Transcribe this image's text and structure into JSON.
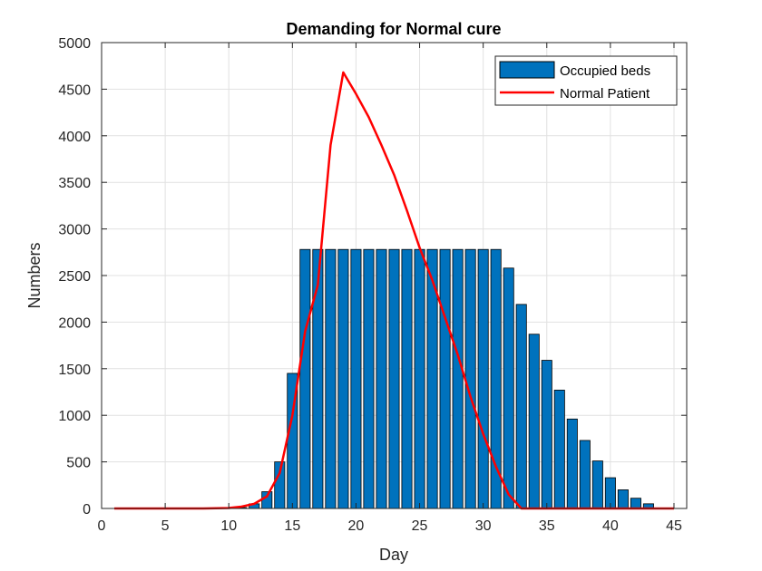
{
  "chart_data": {
    "type": "bar",
    "title": "Demanding for Normal cure",
    "xlabel": "Day",
    "ylabel": "Numbers",
    "xlim": [
      0,
      46
    ],
    "ylim": [
      0,
      5000
    ],
    "xticks": [
      0,
      5,
      10,
      15,
      20,
      25,
      30,
      35,
      40,
      45
    ],
    "yticks": [
      0,
      500,
      1000,
      1500,
      2000,
      2500,
      3000,
      3500,
      4000,
      4500,
      5000
    ],
    "grid": true,
    "legend_position": "top-right",
    "bar_color": "#0072BD",
    "line_color": "#FF0000",
    "series": [
      {
        "name": "Occupied beds",
        "kind": "bar",
        "x": [
          1,
          2,
          3,
          4,
          5,
          6,
          7,
          8,
          9,
          10,
          11,
          12,
          13,
          14,
          15,
          16,
          17,
          18,
          19,
          20,
          21,
          22,
          23,
          24,
          25,
          26,
          27,
          28,
          29,
          30,
          31,
          32,
          33,
          34,
          35,
          36,
          37,
          38,
          39,
          40,
          41,
          42,
          43,
          44,
          45
        ],
        "values": [
          0,
          0,
          0,
          0,
          0,
          0,
          0,
          0,
          0,
          0,
          10,
          50,
          180,
          500,
          1450,
          2780,
          2780,
          2780,
          2780,
          2780,
          2780,
          2780,
          2780,
          2780,
          2780,
          2780,
          2780,
          2780,
          2780,
          2780,
          2780,
          2580,
          2190,
          1870,
          1590,
          1270,
          960,
          730,
          510,
          330,
          200,
          110,
          50,
          0,
          0
        ]
      },
      {
        "name": "Normal Patient",
        "kind": "line",
        "x": [
          1,
          2,
          3,
          4,
          5,
          6,
          7,
          8,
          9,
          10,
          11,
          12,
          13,
          14,
          15,
          16,
          17,
          18,
          19,
          20,
          21,
          22,
          23,
          24,
          25,
          26,
          27,
          28,
          29,
          30,
          31,
          32,
          33,
          34,
          35,
          36,
          37,
          38,
          39,
          40,
          41,
          42,
          43,
          44,
          45
        ],
        "values": [
          0,
          0,
          0,
          0,
          0,
          0,
          0,
          0,
          2,
          5,
          20,
          50,
          130,
          380,
          1000,
          1900,
          2400,
          3900,
          4680,
          4450,
          4200,
          3900,
          3580,
          3200,
          2800,
          2450,
          2050,
          1650,
          1200,
          800,
          450,
          150,
          0,
          0,
          0,
          0,
          0,
          0,
          0,
          0,
          0,
          0,
          0,
          0,
          0
        ]
      }
    ]
  }
}
